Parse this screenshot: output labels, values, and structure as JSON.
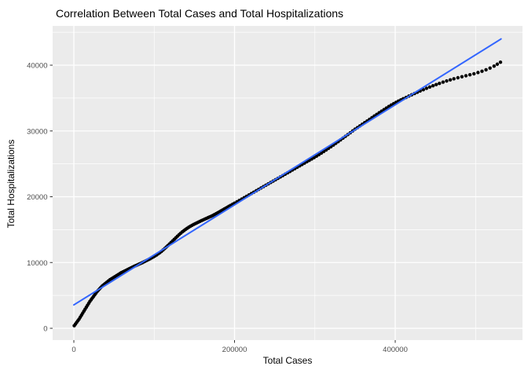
{
  "chart_data": {
    "type": "scatter",
    "title": "Correlation Between Total Cases and Total Hospitalizations",
    "xlabel": "Total Cases",
    "ylabel": "Total Hospitalizations",
    "panel_bg": "#EBEBEB",
    "grid_color": "#FFFFFF",
    "tick_color": "#333333",
    "tick_label_color": "#4D4D4D",
    "point_color": "#000000",
    "fit_color": "#3366FF",
    "grid": "on",
    "legend": "none",
    "xlim": [
      -26400,
      558400
    ],
    "ylim": [
      -1790,
      45970
    ],
    "x_ticks": [
      {
        "value": 0,
        "label": "0"
      },
      {
        "value": 200000,
        "label": "200000"
      },
      {
        "value": 400000,
        "label": "400000"
      }
    ],
    "y_ticks": [
      {
        "value": 0,
        "label": "0"
      },
      {
        "value": 10000,
        "label": "10000"
      },
      {
        "value": 20000,
        "label": "20000"
      },
      {
        "value": 30000,
        "label": "30000"
      },
      {
        "value": 40000,
        "label": "40000"
      }
    ],
    "x_minor": [
      100000,
      300000,
      500000
    ],
    "y_minor": [
      5000,
      15000,
      25000,
      35000,
      45000
    ],
    "series": [
      {
        "name": "observations",
        "kind": "points",
        "color": "#000000",
        "points": [
          [
            500,
            400
          ],
          [
            2000,
            650
          ],
          [
            3500,
            900
          ],
          [
            5000,
            1150
          ],
          [
            6500,
            1400
          ],
          [
            8000,
            1700
          ],
          [
            9500,
            2000
          ],
          [
            11000,
            2300
          ],
          [
            12500,
            2600
          ],
          [
            14000,
            2900
          ],
          [
            15500,
            3200
          ],
          [
            17000,
            3500
          ],
          [
            18500,
            3800
          ],
          [
            20000,
            4100
          ],
          [
            21500,
            4350
          ],
          [
            23000,
            4600
          ],
          [
            24500,
            4850
          ],
          [
            26000,
            5100
          ],
          [
            27500,
            5350
          ],
          [
            29000,
            5600
          ],
          [
            30500,
            5800
          ],
          [
            32000,
            6000
          ],
          [
            33500,
            6200
          ],
          [
            35000,
            6400
          ],
          [
            36500,
            6550
          ],
          [
            38000,
            6700
          ],
          [
            39500,
            6850
          ],
          [
            41000,
            7000
          ],
          [
            43000,
            7200
          ],
          [
            45000,
            7400
          ],
          [
            47000,
            7550
          ],
          [
            49000,
            7700
          ],
          [
            51000,
            7850
          ],
          [
            53000,
            8000
          ],
          [
            55000,
            8150
          ],
          [
            57000,
            8300
          ],
          [
            59000,
            8450
          ],
          [
            61000,
            8580
          ],
          [
            63000,
            8700
          ],
          [
            65000,
            8820
          ],
          [
            67000,
            8940
          ],
          [
            69000,
            9060
          ],
          [
            71000,
            9180
          ],
          [
            73000,
            9300
          ],
          [
            75000,
            9420
          ],
          [
            77000,
            9530
          ],
          [
            79000,
            9640
          ],
          [
            81000,
            9750
          ],
          [
            83000,
            9860
          ],
          [
            85000,
            9970
          ],
          [
            87000,
            10090
          ],
          [
            89000,
            10210
          ],
          [
            91000,
            10330
          ],
          [
            93000,
            10450
          ],
          [
            95000,
            10580
          ],
          [
            97000,
            10720
          ],
          [
            99000,
            10860
          ],
          [
            101000,
            11000
          ],
          [
            103000,
            11160
          ],
          [
            105000,
            11330
          ],
          [
            107000,
            11500
          ],
          [
            109000,
            11700
          ],
          [
            111000,
            11900
          ],
          [
            113000,
            12120
          ],
          [
            115000,
            12350
          ],
          [
            117000,
            12580
          ],
          [
            119000,
            12810
          ],
          [
            121000,
            13050
          ],
          [
            123000,
            13290
          ],
          [
            125000,
            13530
          ],
          [
            127000,
            13770
          ],
          [
            129000,
            14010
          ],
          [
            131000,
            14240
          ],
          [
            133000,
            14460
          ],
          [
            135000,
            14660
          ],
          [
            137000,
            14850
          ],
          [
            139000,
            15030
          ],
          [
            141000,
            15200
          ],
          [
            143000,
            15360
          ],
          [
            145000,
            15510
          ],
          [
            147000,
            15650
          ],
          [
            149000,
            15780
          ],
          [
            151000,
            15900
          ],
          [
            153000,
            16020
          ],
          [
            155000,
            16140
          ],
          [
            157000,
            16260
          ],
          [
            159000,
            16380
          ],
          [
            161000,
            16490
          ],
          [
            163000,
            16600
          ],
          [
            165000,
            16710
          ],
          [
            167000,
            16820
          ],
          [
            169000,
            16930
          ],
          [
            171000,
            17040
          ],
          [
            173000,
            17160
          ],
          [
            175000,
            17290
          ],
          [
            177000,
            17420
          ],
          [
            179000,
            17560
          ],
          [
            181000,
            17700
          ],
          [
            183000,
            17840
          ],
          [
            185000,
            17980
          ],
          [
            187000,
            18120
          ],
          [
            189000,
            18260
          ],
          [
            191000,
            18400
          ],
          [
            193000,
            18540
          ],
          [
            195000,
            18680
          ],
          [
            197500,
            18850
          ],
          [
            200000,
            19020
          ],
          [
            203000,
            19230
          ],
          [
            206000,
            19440
          ],
          [
            209000,
            19650
          ],
          [
            212000,
            19860
          ],
          [
            215000,
            20070
          ],
          [
            218000,
            20280
          ],
          [
            221000,
            20490
          ],
          [
            224000,
            20700
          ],
          [
            227000,
            20910
          ],
          [
            230000,
            21120
          ],
          [
            233000,
            21330
          ],
          [
            236000,
            21540
          ],
          [
            239000,
            21750
          ],
          [
            242000,
            21960
          ],
          [
            245000,
            22170
          ],
          [
            248000,
            22380
          ],
          [
            251000,
            22590
          ],
          [
            254000,
            22800
          ],
          [
            257000,
            23010
          ],
          [
            260000,
            23220
          ],
          [
            263000,
            23430
          ],
          [
            266000,
            23640
          ],
          [
            269000,
            23850
          ],
          [
            272000,
            24060
          ],
          [
            275000,
            24270
          ],
          [
            278000,
            24480
          ],
          [
            281000,
            24690
          ],
          [
            284000,
            24900
          ],
          [
            287000,
            25110
          ],
          [
            290000,
            25320
          ],
          [
            293000,
            25530
          ],
          [
            296000,
            25740
          ],
          [
            299000,
            25950
          ],
          [
            302000,
            26170
          ],
          [
            305000,
            26400
          ],
          [
            308000,
            26630
          ],
          [
            311000,
            26870
          ],
          [
            314000,
            27110
          ],
          [
            317000,
            27360
          ],
          [
            320000,
            27610
          ],
          [
            323000,
            27860
          ],
          [
            326000,
            28120
          ],
          [
            329000,
            28380
          ],
          [
            332000,
            28650
          ],
          [
            335000,
            28920
          ],
          [
            338000,
            29190
          ],
          [
            341000,
            29460
          ],
          [
            344000,
            29730
          ],
          [
            347000,
            30000
          ],
          [
            350000,
            30270
          ],
          [
            353000,
            30520
          ],
          [
            356000,
            30770
          ],
          [
            359000,
            31020
          ],
          [
            362000,
            31270
          ],
          [
            365000,
            31520
          ],
          [
            368000,
            31770
          ],
          [
            371000,
            32020
          ],
          [
            374000,
            32270
          ],
          [
            377000,
            32520
          ],
          [
            380000,
            32770
          ],
          [
            383000,
            33010
          ],
          [
            386000,
            33250
          ],
          [
            389000,
            33490
          ],
          [
            392000,
            33720
          ],
          [
            395000,
            33940
          ],
          [
            398000,
            34150
          ],
          [
            401000,
            34350
          ],
          [
            404000,
            34540
          ],
          [
            407000,
            34720
          ],
          [
            410000,
            34900
          ],
          [
            413500,
            35100
          ],
          [
            417000,
            35300
          ],
          [
            420500,
            35500
          ],
          [
            424000,
            35700
          ],
          [
            427500,
            35890
          ],
          [
            431000,
            36080
          ],
          [
            435000,
            36280
          ],
          [
            439000,
            36480
          ],
          [
            443000,
            36680
          ],
          [
            447000,
            36870
          ],
          [
            451000,
            37050
          ],
          [
            455000,
            37230
          ],
          [
            459500,
            37420
          ],
          [
            464000,
            37600
          ],
          [
            468500,
            37770
          ],
          [
            473000,
            37930
          ],
          [
            478000,
            38090
          ],
          [
            483000,
            38250
          ],
          [
            488000,
            38400
          ],
          [
            493000,
            38550
          ],
          [
            498000,
            38700
          ],
          [
            503000,
            38880
          ],
          [
            508000,
            39080
          ],
          [
            513000,
            39300
          ],
          [
            518000,
            39560
          ],
          [
            523000,
            39860
          ],
          [
            527000,
            40150
          ],
          [
            531000,
            40450
          ]
        ]
      },
      {
        "name": "linear-fit",
        "kind": "line",
        "color": "#3366FF",
        "points": [
          [
            0,
            3560
          ],
          [
            531700,
            43990
          ]
        ]
      }
    ]
  }
}
